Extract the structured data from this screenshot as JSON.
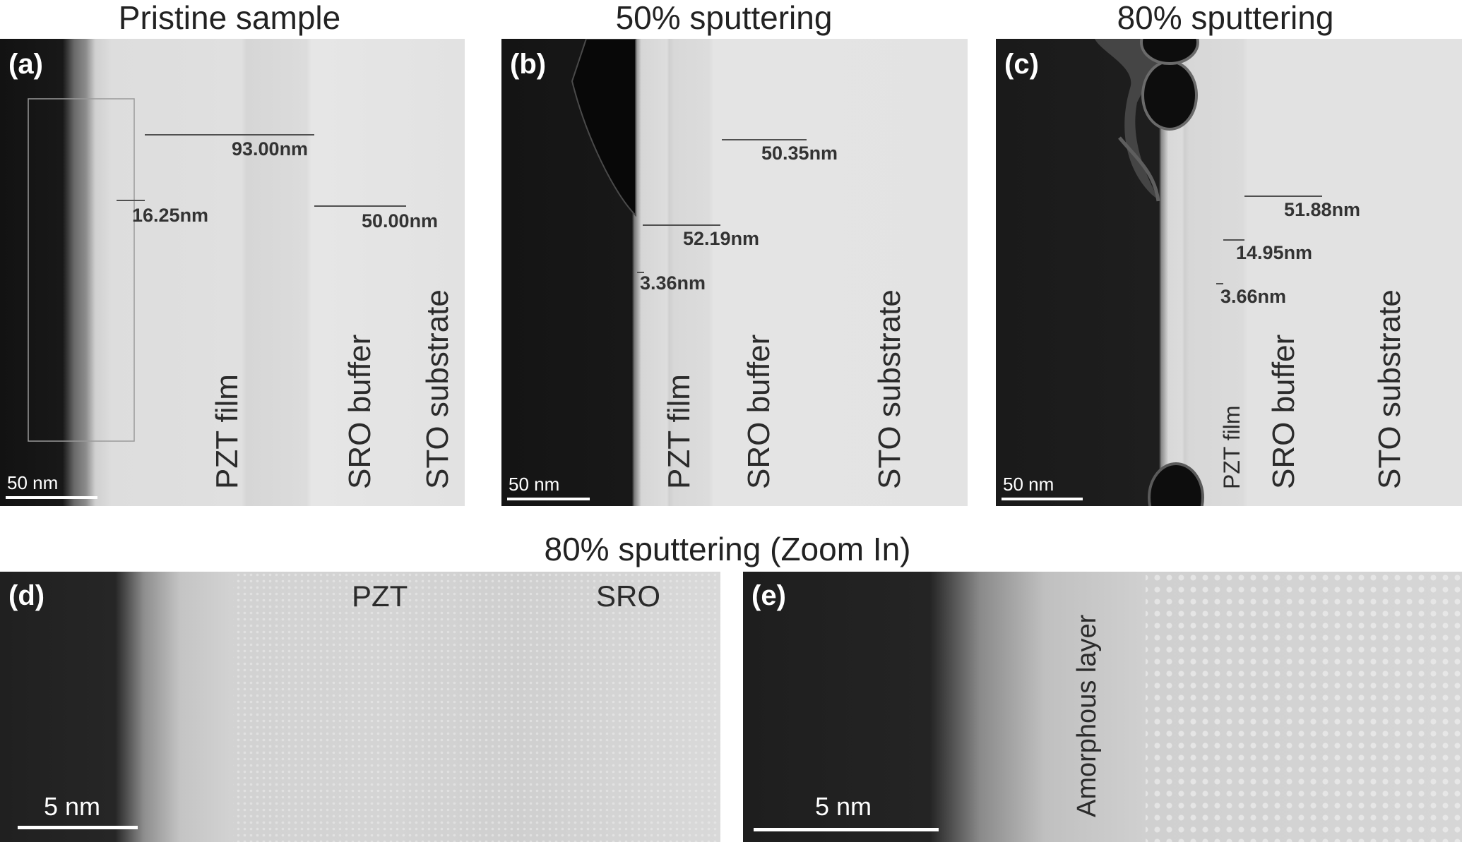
{
  "titles": {
    "a": "Pristine sample",
    "b": "50% sputtering",
    "c": "80% sputtering",
    "zoom": "80% sputtering (Zoom In)"
  },
  "panels": {
    "a": {
      "label": "(a)",
      "measurements": [
        "93.00nm",
        "16.25nm",
        "50.00nm"
      ],
      "layers": [
        "PZT film",
        "SRO buffer",
        "STO substrate"
      ],
      "scale_bar": "50 nm"
    },
    "b": {
      "label": "(b)",
      "measurements": [
        "50.35nm",
        "52.19nm",
        "3.36nm"
      ],
      "layers": [
        "PZT film",
        "SRO buffer",
        "STO substrate"
      ],
      "scale_bar": "50 nm"
    },
    "c": {
      "label": "(c)",
      "measurements": [
        "51.88nm",
        "14.95nm",
        "3.66nm"
      ],
      "layers": [
        "PZT film",
        "SRO buffer",
        "STO substrate"
      ],
      "scale_bar": "50 nm"
    },
    "d": {
      "label": "(d)",
      "layers": [
        "PZT",
        "SRO"
      ],
      "scale_bar": "5 nm"
    },
    "e": {
      "label": "(e)",
      "layers": [
        "Amorphous layer"
      ],
      "scale_bar": "5 nm"
    }
  },
  "colors": {
    "vacuum": "#151515",
    "film": "#dedede",
    "substrate": "#e3e3e3",
    "label": "#ffffff"
  }
}
